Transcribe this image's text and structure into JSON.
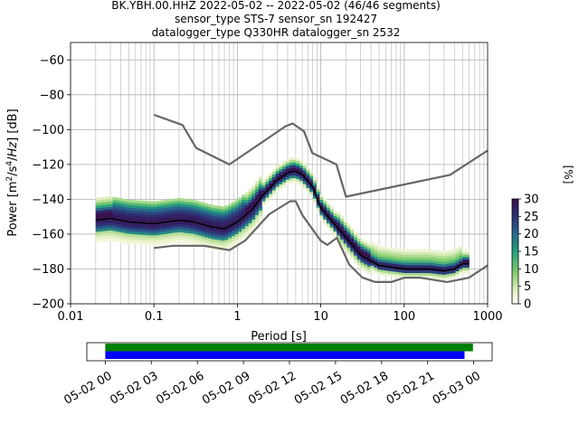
{
  "title_lines": [
    "BK.YBH.00.HHZ   2022-05-02 -- 2022-05-02  (46/46 segments)",
    "sensor_type STS-7 sensor_sn 192427",
    "datalogger_type Q330HR datalogger_sn 2532"
  ],
  "chart_data": [
    {
      "type": "heatmap",
      "title": "",
      "xlabel": "Period [s]",
      "ylabel": "Power [m²/s⁴/Hz] [dB]",
      "xscale": "log",
      "xlim": [
        0.01,
        1000
      ],
      "ylim": [
        -200,
        -50
      ],
      "x_tick_labels": [
        "0.01",
        "0.1",
        "1",
        "10",
        "100",
        "1000"
      ],
      "y_ticks": [
        -60,
        -80,
        -100,
        -120,
        -140,
        -160,
        -180,
        -200
      ],
      "grid": true,
      "colorbar": {
        "label": "[%]",
        "range": [
          0,
          30
        ],
        "ticks": [
          0,
          5,
          10,
          15,
          20,
          25,
          30
        ]
      },
      "series": [
        {
          "role": "high noise model",
          "x": [
            0.1,
            0.22,
            0.32,
            0.8,
            3.8,
            4.6,
            6.3,
            7.9,
            15.4,
            20,
            354.8,
            1000
          ],
          "y": [
            -91.5,
            -97.4,
            -110.5,
            -120.0,
            -98.0,
            -96.5,
            -101.0,
            -113.5,
            -120.0,
            -138.5,
            -126.0,
            -112.0
          ]
        },
        {
          "role": "low noise model",
          "x": [
            0.1,
            0.17,
            0.4,
            0.8,
            1.24,
            2.4,
            4.3,
            5.0,
            6.0,
            10.0,
            12.0,
            15.6,
            21.9,
            31.6,
            45,
            70,
            101,
            154,
            328,
            600,
            1000
          ],
          "y": [
            -168.0,
            -166.7,
            -166.7,
            -169.2,
            -163.7,
            -148.6,
            -141.1,
            -141.1,
            -149.0,
            -163.8,
            -166.2,
            -162.1,
            -177.5,
            -185.0,
            -187.5,
            -187.5,
            -185.0,
            -185.0,
            -187.5,
            -185.0,
            -178.0
          ]
        },
        {
          "role": "mode",
          "x": [
            0.02,
            0.03,
            0.05,
            0.1,
            0.2,
            0.3,
            0.5,
            0.7,
            1.0,
            1.5,
            2,
            3,
            4,
            4.5,
            5,
            6,
            8,
            10,
            15,
            20,
            30,
            50,
            100,
            200,
            300,
            400,
            500,
            600
          ],
          "y": [
            -152,
            -151,
            -153,
            -154,
            -152,
            -153,
            -156,
            -157,
            -153,
            -146,
            -138,
            -129,
            -125,
            -124,
            -124,
            -126,
            -133,
            -145,
            -155,
            -162,
            -172,
            -178,
            -180,
            -180,
            -181,
            -180,
            -177,
            -177
          ]
        }
      ]
    },
    {
      "type": "bar",
      "title": "",
      "xlabel": "",
      "ylabel": "",
      "x_tick_labels": [
        "05-02 00",
        "05-02 03",
        "05-02 06",
        "05-02 09",
        "05-02 12",
        "05-02 15",
        "05-02 18",
        "05-02 21",
        "05-03 00"
      ],
      "x_hours": [
        0,
        3,
        6,
        9,
        12,
        15,
        18,
        21,
        24
      ],
      "xlim_hours": [
        -1.2,
        25.2
      ],
      "series": [
        {
          "role": "data coverage",
          "color": "#008000",
          "start_hour": 0.0,
          "end_hour": 23.95
        },
        {
          "role": "psd segments used",
          "color": "#0000ff",
          "start_hour": 0.0,
          "end_hour": 23.4
        }
      ]
    }
  ]
}
